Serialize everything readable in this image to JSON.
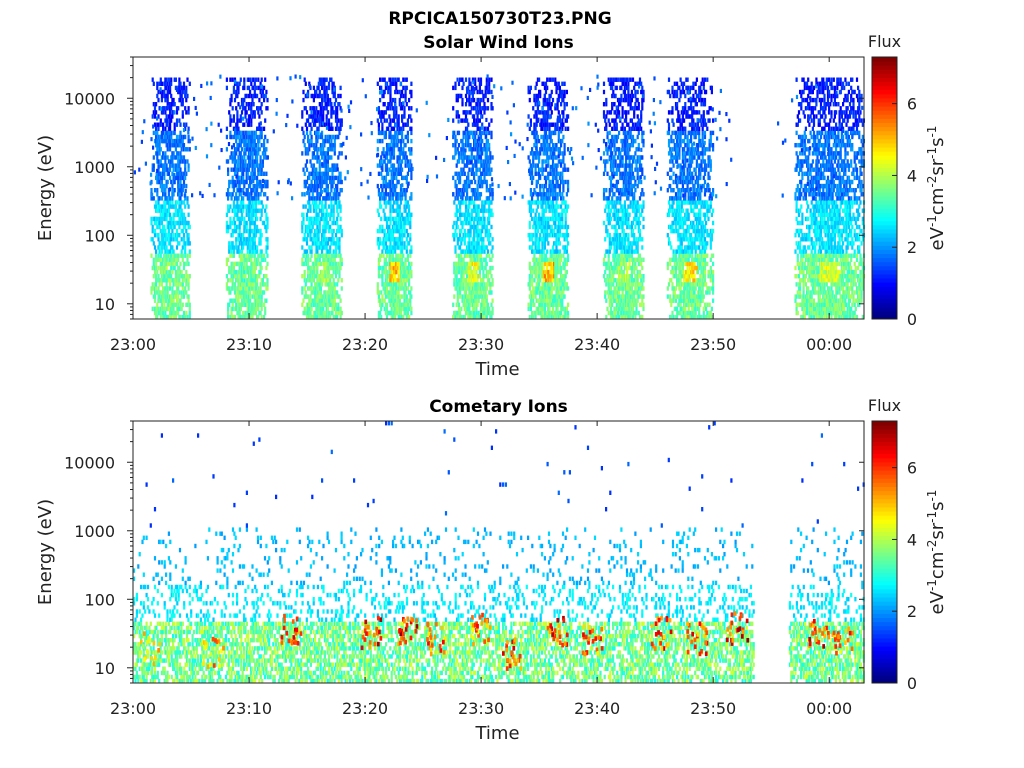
{
  "figure_title": "RPCICA150730T23.PNG",
  "chart_data": [
    {
      "type": "heatmap",
      "title": "Solar Wind Ions",
      "xlabel": "Time",
      "ylabel": "Energy (eV)",
      "x_ticks": [
        "23:00",
        "23:10",
        "23:20",
        "23:30",
        "23:40",
        "23:50",
        "00:00"
      ],
      "x_tick_minutes": [
        0,
        10,
        20,
        30,
        40,
        50,
        60
      ],
      "x_range_minutes": [
        0,
        63
      ],
      "y_scale": "log",
      "y_ticks": [
        "10",
        "100",
        "1000",
        "10000"
      ],
      "y_tick_values": [
        10,
        100,
        1000,
        10000
      ],
      "y_range": [
        6,
        40000
      ],
      "colorbar": {
        "title": "Flux",
        "label": "eV-1cm-2sr-1s-1",
        "ticks": [
          "0",
          "2",
          "4",
          "6"
        ],
        "tick_values": [
          0,
          2,
          4,
          6
        ],
        "range": [
          0,
          7.3
        ],
        "colormap": "jet"
      },
      "bursts": [
        {
          "start": 1.5,
          "end": 4.8,
          "peak_flux": 4.2
        },
        {
          "start": 8.0,
          "end": 11.5,
          "peak_flux": 4.0
        },
        {
          "start": 14.5,
          "end": 18.0,
          "peak_flux": 4.5
        },
        {
          "start": 21.0,
          "end": 24.0,
          "peak_flux": 5.6
        },
        {
          "start": 27.5,
          "end": 31.0,
          "peak_flux": 5.0
        },
        {
          "start": 34.0,
          "end": 37.5,
          "peak_flux": 5.6
        },
        {
          "start": 40.5,
          "end": 44.0,
          "peak_flux": 4.5
        },
        {
          "start": 46.0,
          "end": 50.0,
          "peak_flux": 5.2
        },
        {
          "start": 57.0,
          "end": 63.0,
          "peak_flux": 4.8
        }
      ]
    },
    {
      "type": "heatmap",
      "title": "Cometary Ions",
      "xlabel": "Time",
      "ylabel": "Energy (eV)",
      "x_ticks": [
        "23:00",
        "23:10",
        "23:20",
        "23:30",
        "23:40",
        "23:50",
        "00:00"
      ],
      "x_tick_minutes": [
        0,
        10,
        20,
        30,
        40,
        50,
        60
      ],
      "x_range_minutes": [
        0,
        63
      ],
      "y_scale": "log",
      "y_ticks": [
        "10",
        "100",
        "1000",
        "10000"
      ],
      "y_tick_values": [
        10,
        100,
        1000,
        10000
      ],
      "y_range": [
        6,
        40000
      ],
      "colorbar": {
        "title": "Flux",
        "label": "eV-1cm-2sr-1s-1",
        "ticks": [
          "0",
          "2",
          "4",
          "6"
        ],
        "tick_values": [
          0,
          2,
          4,
          6
        ],
        "range": [
          0,
          7.3
        ],
        "colormap": "jet"
      },
      "hot_spots": [
        {
          "minute": 1.5,
          "energy": 18,
          "flux": 5.5
        },
        {
          "minute": 6.8,
          "energy": 15,
          "flux": 6.0
        },
        {
          "minute": 13.5,
          "energy": 35,
          "flux": 7.0
        },
        {
          "minute": 20.5,
          "energy": 30,
          "flux": 7.0
        },
        {
          "minute": 23.5,
          "energy": 30,
          "flux": 7.2
        },
        {
          "minute": 26.0,
          "energy": 25,
          "flux": 6.5
        },
        {
          "minute": 30.0,
          "energy": 35,
          "flux": 6.5
        },
        {
          "minute": 32.5,
          "energy": 15,
          "flux": 7.0
        },
        {
          "minute": 36.5,
          "energy": 30,
          "flux": 7.0
        },
        {
          "minute": 39.5,
          "energy": 25,
          "flux": 6.5
        },
        {
          "minute": 45.5,
          "energy": 30,
          "flux": 6.8
        },
        {
          "minute": 48.5,
          "energy": 25,
          "flux": 6.8
        },
        {
          "minute": 52.0,
          "energy": 35,
          "flux": 7.2
        },
        {
          "minute": 59.0,
          "energy": 30,
          "flux": 7.0
        },
        {
          "minute": 61.0,
          "energy": 25,
          "flux": 6.5
        }
      ]
    }
  ]
}
